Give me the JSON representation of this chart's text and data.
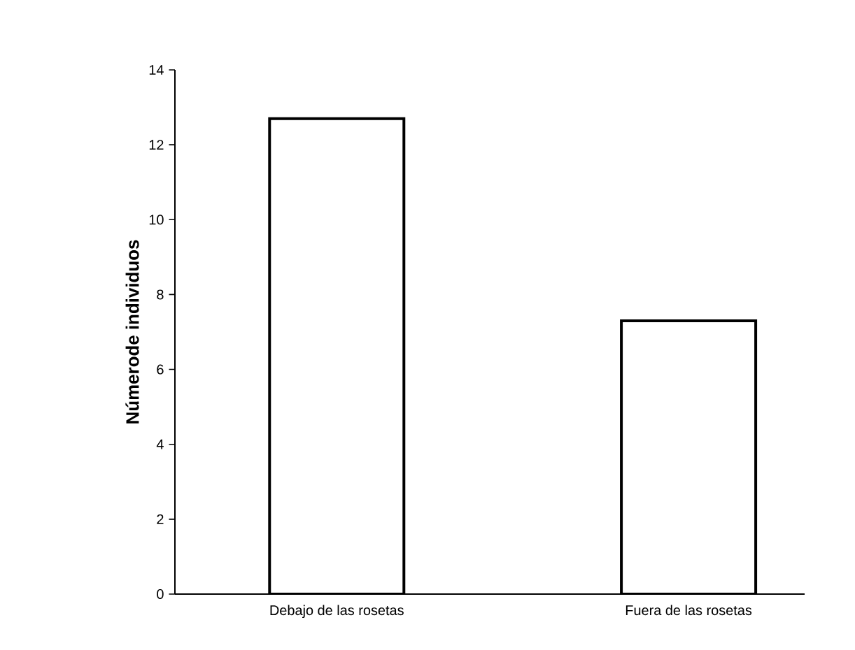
{
  "chart_data": {
    "type": "bar",
    "ylabel": "Númerode individuos",
    "categories": [
      "Debajo de las rosetas",
      "Fuera de las rosetas"
    ],
    "values": [
      12.7,
      7.3
    ],
    "color": "#ffffff",
    "ylim": [
      0,
      14
    ],
    "yticks": [
      0,
      2,
      4,
      6,
      8,
      10,
      12,
      14
    ],
    "grid": false
  }
}
